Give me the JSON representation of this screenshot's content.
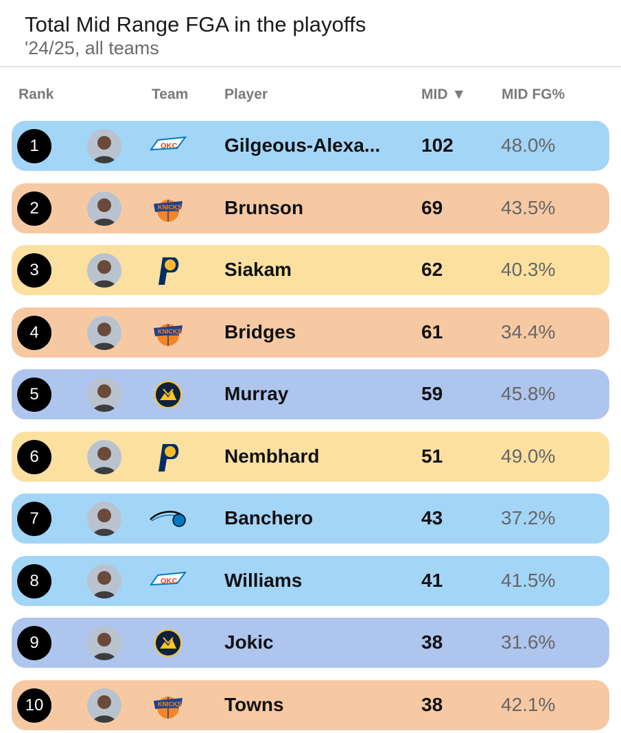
{
  "header": {
    "title": "Total Mid Range FGA in the playoffs",
    "subtitle": "'24/25, all teams"
  },
  "columns": {
    "rank": "Rank",
    "team": "Team",
    "player": "Player",
    "mid": "MID ▼",
    "mid_fg": "MID FG%"
  },
  "team_colors": {
    "OKC": "#a3d5f7",
    "NYK": "#f7c9a3",
    "IND": "#fbe0a0",
    "DEN": "#aec5ee",
    "ORL": "#a3d5f7"
  },
  "rows": [
    {
      "rank": "1",
      "team": "OKC",
      "logo": "okc-logo-icon",
      "player": "Gilgeous-Alexa...",
      "mid": "102",
      "mid_fg": "48.0%"
    },
    {
      "rank": "2",
      "team": "NYK",
      "logo": "knicks-logo-icon",
      "player": "Brunson",
      "mid": "69",
      "mid_fg": "43.5%"
    },
    {
      "rank": "3",
      "team": "IND",
      "logo": "pacers-logo-icon",
      "player": "Siakam",
      "mid": "62",
      "mid_fg": "40.3%"
    },
    {
      "rank": "4",
      "team": "NYK",
      "logo": "knicks-logo-icon",
      "player": "Bridges",
      "mid": "61",
      "mid_fg": "34.4%"
    },
    {
      "rank": "5",
      "team": "DEN",
      "logo": "nuggets-logo-icon",
      "player": "Murray",
      "mid": "59",
      "mid_fg": "45.8%"
    },
    {
      "rank": "6",
      "team": "IND",
      "logo": "pacers-logo-icon",
      "player": "Nembhard",
      "mid": "51",
      "mid_fg": "49.0%"
    },
    {
      "rank": "7",
      "team": "ORL",
      "logo": "magic-logo-icon",
      "player": "Banchero",
      "mid": "43",
      "mid_fg": "37.2%"
    },
    {
      "rank": "8",
      "team": "OKC",
      "logo": "okc-logo-icon",
      "player": "Williams",
      "mid": "41",
      "mid_fg": "41.5%"
    },
    {
      "rank": "9",
      "team": "DEN",
      "logo": "nuggets-logo-icon",
      "player": "Jokic",
      "mid": "38",
      "mid_fg": "31.6%"
    },
    {
      "rank": "10",
      "team": "NYK",
      "logo": "knicks-logo-icon",
      "player": "Towns",
      "mid": "38",
      "mid_fg": "42.1%"
    }
  ]
}
